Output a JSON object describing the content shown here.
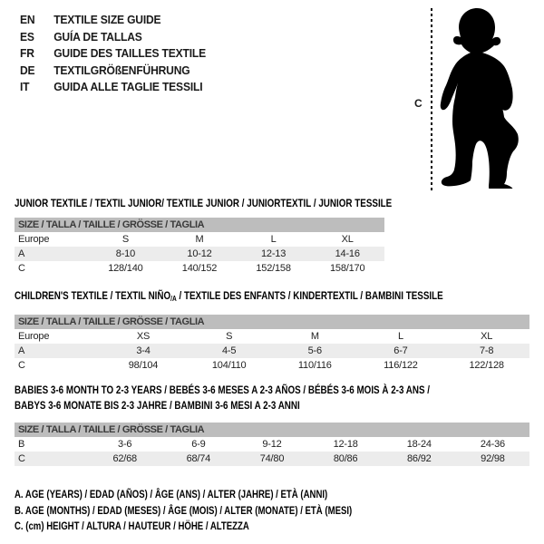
{
  "languages": [
    {
      "code": "EN",
      "label": "TEXTILE SIZE GUIDE"
    },
    {
      "code": "ES",
      "label": "GUÍA DE TALLAS"
    },
    {
      "code": "FR",
      "label": "GUIDE DES TAILLES TEXTILE"
    },
    {
      "code": "DE",
      "label": "TEXTILGRÖßENFÜHRUNG"
    },
    {
      "code": "IT",
      "label": "GUIDA ALLE TAGLIE TESSILI"
    }
  ],
  "figure": {
    "icon": "baby-silhouette",
    "label": "C"
  },
  "tables": [
    {
      "title": "JUNIOR TEXTILE / TEXTIL JUNIOR/ TEXTILE JUNIOR / JUNIORTEXTIL / JUNIOR TESSILE",
      "size_header": "SIZE / TALLA / TAILLE / GRÖSSE / TAGLIA",
      "rows": [
        {
          "label": "Europe",
          "values": [
            "S",
            "M",
            "L",
            "XL"
          ]
        },
        {
          "label": "A",
          "values": [
            "8-10",
            "10-12",
            "12-13",
            "14-16"
          ]
        },
        {
          "label": "C",
          "values": [
            "128/140",
            "140/152",
            "152/158",
            "158/170"
          ]
        }
      ]
    },
    {
      "title_pre": "CHILDREN'S TEXTILE / TEXTIL NIÑO",
      "title_sub": "/A",
      "title_post": " / TEXTILE DES ENFANTS / KINDERTEXTIL / BAMBINI TESSILE",
      "size_header": "SIZE / TALLA / TAILLE / GRÖSSE / TAGLIA",
      "rows": [
        {
          "label": "Europe",
          "values": [
            "XS",
            "S",
            "M",
            "L",
            "XL"
          ]
        },
        {
          "label": "A",
          "values": [
            "3-4",
            "4-5",
            "5-6",
            "6-7",
            "7-8"
          ]
        },
        {
          "label": "C",
          "values": [
            "98/104",
            "104/110",
            "110/116",
            "116/122",
            "122/128"
          ]
        }
      ]
    },
    {
      "title": "BABIES 3-6 MONTH TO 2-3 YEARS / BEBÉS 3-6 MESES A 2-3 AÑOS / BÉBÉS 3-6 MOIS À 2-3 ANS /",
      "title2": "BABYS 3-6 MONATE BIS 2-3 JAHRE / BAMBINI 3-6 MESI A 2-3 ANNI",
      "size_header": "SIZE / TALLA / TAILLE / GRÖSSE / TAGLIA",
      "rows": [
        {
          "label": "B",
          "values": [
            "3-6",
            "6-9",
            "9-12",
            "12-18",
            "18-24",
            "24-36"
          ]
        },
        {
          "label": "C",
          "values": [
            "62/68",
            "68/74",
            "74/80",
            "80/86",
            "86/92",
            "92/98"
          ]
        }
      ]
    }
  ],
  "notes": [
    "A. AGE (YEARS) / EDAD (AÑOS) / ÂGE (ANS) / ALTER (JAHRE) / ETÀ (ANNI)",
    "B. AGE (MONTHS) / EDAD (MESES) / ÂGE (MOIS) / ALTER (MONATE) / ETÀ (MESI)",
    "C. (cm) HEIGHT / ALTURA / HAUTEUR / HÖHE / ALTEZZA"
  ],
  "colors": {
    "header_bar": "#bdbdbd",
    "alt_row": "#ececec",
    "text": "#1a1a1a"
  }
}
